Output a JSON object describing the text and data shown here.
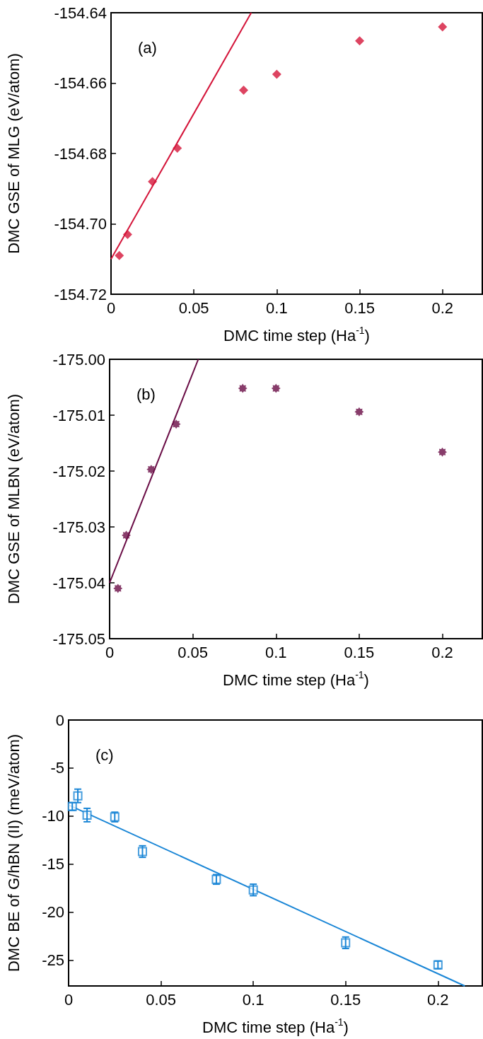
{
  "chart_data": [
    {
      "type": "scatter",
      "annotations": [
        "(a)"
      ],
      "xlabel": "DMC time step (Ha$^{-1}$)",
      "ylabel": "DMC GSE of MLG (eV/atom)",
      "xlim": [
        0,
        0.224
      ],
      "xticks": [
        0,
        0.05,
        0.1,
        0.15,
        0.2
      ],
      "ylim": [
        -154.72,
        -154.64
      ],
      "yticks": [
        {
          "value": -154.72,
          "label": "-154.72"
        },
        {
          "value": -154.7,
          "label": "-154.70"
        },
        {
          "value": -154.68,
          "label": "-154.68"
        },
        {
          "value": -154.66,
          "label": "-154.66"
        },
        {
          "value": -154.64,
          "label": "-154.64"
        }
      ],
      "grid": false,
      "series": [
        {
          "color": "#d4153a",
          "marker": "diamond",
          "x": [
            0.005,
            0.01,
            0.025,
            0.04,
            0.08,
            0.1,
            0.15,
            0.2
          ],
          "values": [
            -154.709,
            -154.703,
            -154.688,
            -154.6785,
            -154.662,
            -154.6575,
            -154.648,
            -154.644
          ]
        },
        {
          "type": "line",
          "color": "#d4153a",
          "marker": "none",
          "line_style": "solid",
          "x": [
            0,
            0.0846
          ],
          "values": [
            -154.71,
            -154.64
          ]
        }
      ]
    },
    {
      "type": "scatter",
      "annotations": [
        "(b)"
      ],
      "xlabel": "DMC time step (Ha$^{-1}$)",
      "ylabel": "DMC GSE of MLBN (eV/atom)",
      "xlim": [
        0,
        0.224
      ],
      "xticks": [
        0,
        0.05,
        0.1,
        0.15,
        0.2
      ],
      "ylim": [
        -175.05,
        -175.0
      ],
      "yticks": [
        {
          "value": -175.05,
          "label": "-175.05"
        },
        {
          "value": -175.04,
          "label": "-175.04"
        },
        {
          "value": -175.03,
          "label": "-175.03"
        },
        {
          "value": -175.02,
          "label": "-175.02"
        },
        {
          "value": -175.01,
          "label": "-175.01"
        },
        {
          "value": -175.0,
          "label": "-175.00"
        }
      ],
      "grid": false,
      "series": [
        {
          "color": "#6a0d46",
          "marker": "star",
          "x": [
            0.005,
            0.01,
            0.025,
            0.04,
            0.08,
            0.1,
            0.15,
            0.2
          ],
          "values": [
            -175.041,
            -175.0315,
            -175.0197,
            -175.0116,
            -175.0052,
            -175.0052,
            -175.0094,
            -175.0166
          ]
        },
        {
          "type": "line",
          "color": "#6a0d46",
          "marker": "none",
          "line_style": "solid",
          "x": [
            0,
            0.0533
          ],
          "values": [
            -175.04,
            -175.0
          ]
        }
      ]
    },
    {
      "type": "scatter",
      "annotations": [
        "(c)"
      ],
      "xlabel": "DMC time step (Ha$^{-1}$)",
      "ylabel": "DMC BE of G/hBN (II) (meV/atom)",
      "xlim": [
        0,
        0.224
      ],
      "xticks": [
        0,
        0.05,
        0.1,
        0.15,
        0.2
      ],
      "ylim": [
        -27.7,
        0
      ],
      "yticks": [
        -25,
        -20,
        -15,
        -10,
        -5,
        0
      ],
      "grid": false,
      "series": [
        {
          "color": "#1a86d6",
          "marker": "square",
          "x": [
            0.002,
            0.005,
            0.01,
            0.025,
            0.04,
            0.08,
            0.1,
            0.15,
            0.2
          ],
          "values": [
            -9.0,
            -7.9,
            -9.9,
            -10.1,
            -13.7,
            -16.6,
            -17.7,
            -23.2,
            -25.5
          ],
          "errors": [
            0.4,
            0.7,
            0.7,
            0.5,
            0.6,
            0.5,
            0.6,
            0.6,
            0.4
          ]
        },
        {
          "type": "line",
          "color": "#1a86d6",
          "marker": "none",
          "line_style": "solid",
          "x": [
            0,
            0.2145
          ],
          "values": [
            -8.85,
            -27.7
          ]
        }
      ]
    }
  ]
}
